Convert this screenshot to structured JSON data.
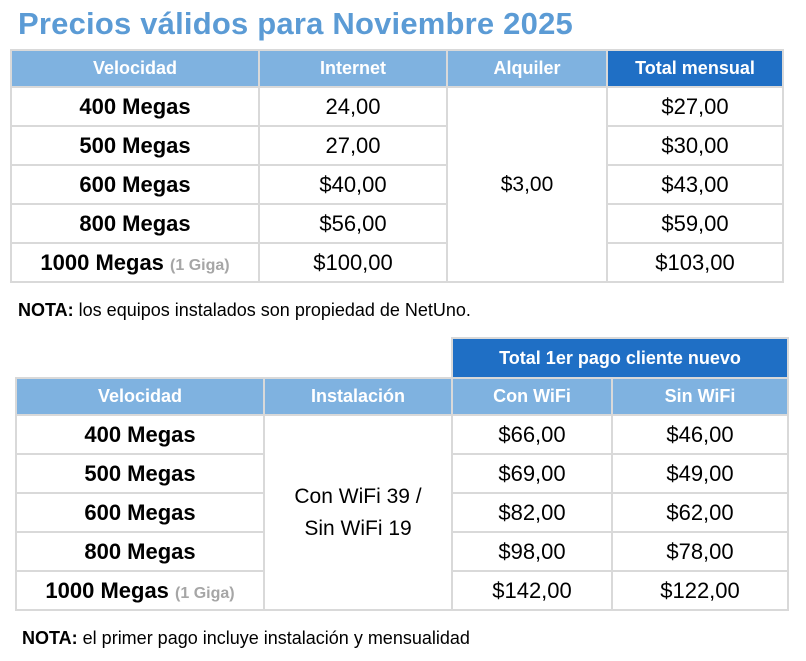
{
  "title": "Precios válidos para Noviembre 2025",
  "table1": {
    "headers": [
      "Velocidad",
      "Internet",
      "Alquiler",
      "Total mensual"
    ],
    "rows": [
      {
        "speed": "400 Megas",
        "suffix": "",
        "internet": "24,00",
        "total": "$27,00"
      },
      {
        "speed": "500 Megas",
        "suffix": "",
        "internet": "27,00",
        "total": "$30,00"
      },
      {
        "speed": "600 Megas",
        "suffix": "",
        "internet": "$40,00",
        "total": "$43,00"
      },
      {
        "speed": "800 Megas",
        "suffix": "",
        "internet": "$56,00",
        "total": "$59,00"
      },
      {
        "speed": "1000 Megas",
        "suffix": "(1 Giga)",
        "internet": "$100,00",
        "total": "$103,00"
      }
    ],
    "alquiler": "$3,00"
  },
  "note1": {
    "label": "NOTA:",
    "text": "los equipos instalados son propiedad de NetUno."
  },
  "table2": {
    "group_header": "Total 1er pago cliente nuevo",
    "headers": [
      "Velocidad",
      "Instalación",
      "Con WiFi",
      "Sin WiFi"
    ],
    "rows": [
      {
        "speed": "400 Megas",
        "suffix": "",
        "con_wifi": "$66,00",
        "sin_wifi": "$46,00"
      },
      {
        "speed": "500 Megas",
        "suffix": "",
        "con_wifi": "$69,00",
        "sin_wifi": "$49,00"
      },
      {
        "speed": "600 Megas",
        "suffix": "",
        "con_wifi": "$82,00",
        "sin_wifi": "$62,00"
      },
      {
        "speed": "800 Megas",
        "suffix": "",
        "con_wifi": "$98,00",
        "sin_wifi": "$78,00"
      },
      {
        "speed": "1000 Megas",
        "suffix": "(1 Giga)",
        "con_wifi": "$142,00",
        "sin_wifi": "$122,00"
      }
    ],
    "instalacion_line1": "Con WiFi 39 /",
    "instalacion_line2": "Sin WiFi 19"
  },
  "note2": {
    "label": "NOTA:",
    "text": "el primer pago incluye instalación y mensualidad"
  }
}
